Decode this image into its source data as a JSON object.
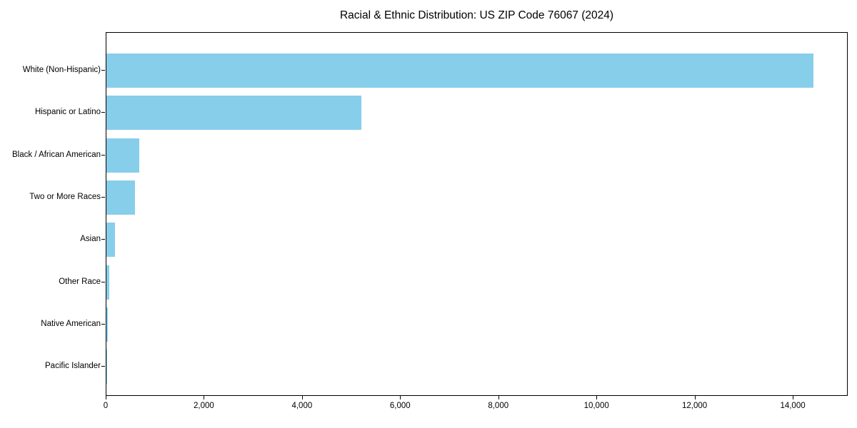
{
  "chart_data": {
    "type": "bar",
    "orientation": "horizontal",
    "title": "Racial & Ethnic Distribution: US ZIP Code 76067 (2024)",
    "xlabel": "",
    "ylabel": "",
    "categories": [
      "White (Non-Hispanic)",
      "Hispanic or Latino",
      "Black / African American",
      "Two or More Races",
      "Asian",
      "Other Race",
      "Native American",
      "Pacific Islander"
    ],
    "values": [
      14400,
      5200,
      670,
      580,
      180,
      65,
      25,
      5
    ],
    "xlim": [
      0,
      15120
    ],
    "x_ticks": [
      {
        "value": 0,
        "label": "0"
      },
      {
        "value": 2000,
        "label": "2,000"
      },
      {
        "value": 4000,
        "label": "4,000"
      },
      {
        "value": 6000,
        "label": "6,000"
      },
      {
        "value": 8000,
        "label": "8,000"
      },
      {
        "value": 10000,
        "label": "10,000"
      },
      {
        "value": 12000,
        "label": "12,000"
      },
      {
        "value": 14000,
        "label": "14,000"
      }
    ],
    "bar_color": "#87CEEB",
    "axis_color": "#000000",
    "background_color": "#ffffff",
    "grid": false,
    "legend": "none"
  }
}
